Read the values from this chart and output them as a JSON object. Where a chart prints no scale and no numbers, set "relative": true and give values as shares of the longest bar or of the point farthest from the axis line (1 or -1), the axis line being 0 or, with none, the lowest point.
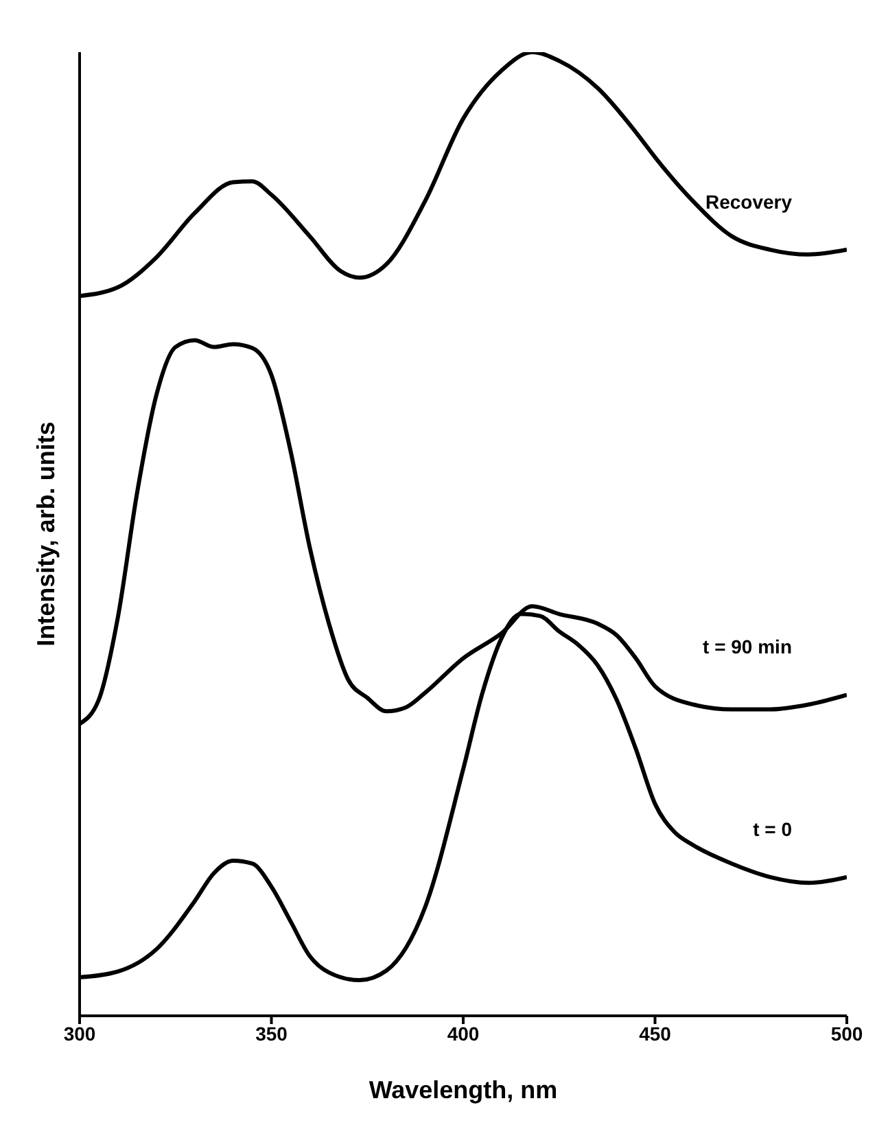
{
  "chart_data": {
    "type": "line",
    "relative": true,
    "xlabel": "Wavelength, nm",
    "ylabel": "Intensity, arb. units",
    "xlim": [
      300,
      500
    ],
    "xticks": [
      300,
      350,
      400,
      450,
      500
    ],
    "grid": false,
    "legend": false,
    "marker": "none",
    "line_style": "solid",
    "series": [
      {
        "name": "t = 0",
        "color": "#000000",
        "x": [
          300,
          310,
          320,
          330,
          335,
          340,
          345,
          350,
          355,
          360,
          365,
          373,
          380,
          390,
          400,
          405,
          410,
          415,
          420,
          425,
          430,
          435,
          440,
          445,
          450,
          455,
          460,
          470,
          480,
          490,
          500
        ],
        "values": [
          0.04,
          0.046,
          0.069,
          0.119,
          0.148,
          0.161,
          0.158,
          0.134,
          0.098,
          0.062,
          0.045,
          0.037,
          0.047,
          0.112,
          0.256,
          0.335,
          0.392,
          0.417,
          0.415,
          0.399,
          0.385,
          0.364,
          0.328,
          0.277,
          0.22,
          0.191,
          0.177,
          0.158,
          0.144,
          0.138,
          0.144
        ]
      },
      {
        "name": "t = 90 min",
        "color": "#000000",
        "x": [
          300,
          305,
          310,
          315,
          320,
          325,
          330,
          335,
          340,
          345,
          350,
          355,
          360,
          365,
          370,
          375,
          380,
          385,
          390,
          400,
          410,
          418,
          425,
          435,
          440,
          445,
          450,
          460,
          470,
          480,
          490,
          500
        ],
        "values": [
          0.303,
          0.328,
          0.414,
          0.543,
          0.644,
          0.694,
          0.701,
          0.694,
          0.697,
          0.693,
          0.665,
          0.586,
          0.486,
          0.407,
          0.349,
          0.33,
          0.316,
          0.32,
          0.335,
          0.371,
          0.397,
          0.425,
          0.417,
          0.407,
          0.395,
          0.371,
          0.342,
          0.323,
          0.318,
          0.318,
          0.323,
          0.333
        ]
      },
      {
        "name": "Recovery",
        "color": "#000000",
        "x": [
          300,
          310,
          320,
          330,
          340,
          345,
          350,
          360,
          368,
          373,
          380,
          390,
          400,
          410,
          418,
          425,
          435,
          445,
          450,
          460,
          470,
          480,
          490,
          500
        ],
        "values": [
          0.747,
          0.756,
          0.787,
          0.833,
          0.865,
          0.866,
          0.852,
          0.809,
          0.773,
          0.766,
          0.78,
          0.845,
          0.931,
          0.981,
          1,
          0.991,
          0.963,
          0.917,
          0.891,
          0.845,
          0.809,
          0.795,
          0.79,
          0.795
        ]
      }
    ]
  }
}
